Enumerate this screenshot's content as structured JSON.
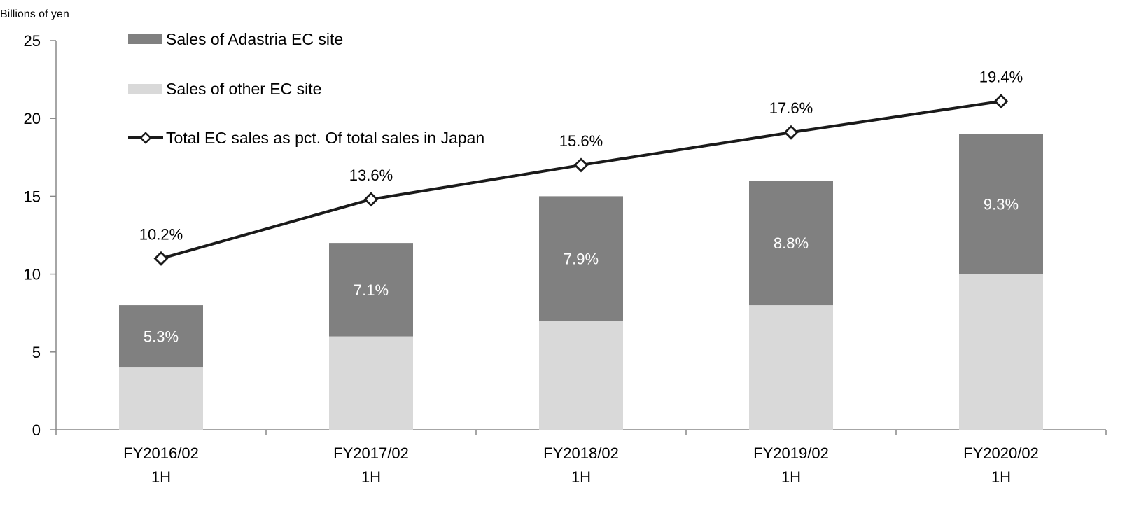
{
  "chart_data": {
    "type": "bar",
    "stacked": true,
    "unit_label": "Billions of yen",
    "categories": [
      [
        "FY2016/02",
        "1H"
      ],
      [
        "FY2017/02",
        "1H"
      ],
      [
        "FY2018/02",
        "1H"
      ],
      [
        "FY2019/02",
        "1H"
      ],
      [
        "FY2020/02",
        "1H"
      ]
    ],
    "ylim": [
      0,
      25
    ],
    "yticks": [
      0,
      5,
      10,
      15,
      20,
      25
    ],
    "grid": false,
    "legend_position": "top-left",
    "series": [
      {
        "name": "Sales of other EC site",
        "kind": "bar",
        "color": "#d9d9d9",
        "values": [
          4,
          6,
          7,
          8,
          10
        ]
      },
      {
        "name": "Sales of Adastria EC site",
        "kind": "bar",
        "color": "#808080",
        "values": [
          4,
          6,
          8,
          8,
          9
        ],
        "data_labels": [
          "5.3%",
          "7.1%",
          "7.9%",
          "8.8%",
          "9.3%"
        ]
      },
      {
        "name": "Total EC sales as pct. Of total sales in Japan",
        "kind": "line",
        "color": "#1a1a1a",
        "marker": "diamond",
        "values": [
          11,
          14.8,
          17,
          19.1,
          21.1
        ],
        "data_labels": [
          "10.2%",
          "13.6%",
          "15.6%",
          "17.6%",
          "19.4%"
        ]
      }
    ],
    "legend_order": [
      "Sales of Adastria EC site",
      "Sales of other EC site",
      "Total EC sales as pct. Of total sales in Japan"
    ]
  }
}
